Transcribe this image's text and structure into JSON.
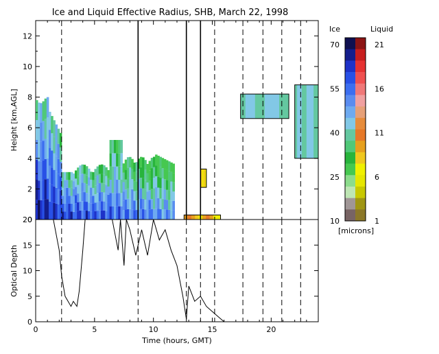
{
  "chart_data": [
    {
      "type": "heatmap",
      "title": "Ice and Liquid Effective Radius, SHB, March 22, 1998",
      "ylabel": "Height [km,AGL]",
      "xlim": [
        0,
        24
      ],
      "ylim": [
        0,
        13
      ],
      "yticks": [
        "0",
        "2",
        "4",
        "6",
        "8",
        "10",
        "12"
      ],
      "vertical_lines": [
        {
          "x": 2.2,
          "style": "dashed"
        },
        {
          "x": 8.7,
          "style": "solid"
        },
        {
          "x": 12.8,
          "style": "solid"
        },
        {
          "x": 14.0,
          "style": "solid"
        },
        {
          "x": 15.2,
          "style": "dashed"
        },
        {
          "x": 17.6,
          "style": "dashed"
        },
        {
          "x": 19.3,
          "style": "dashed"
        },
        {
          "x": 20.9,
          "style": "dashed"
        },
        {
          "x": 22.5,
          "style": "dashed"
        }
      ],
      "regions": [
        {
          "name": "ice-main",
          "phase": "ice",
          "x_range": [
            0,
            11.8
          ],
          "height_range": [
            0,
            7.8
          ],
          "effective_radius_range_microns": [
            25,
            70
          ]
        },
        {
          "name": "liquid-base",
          "phase": "liquid",
          "x_range": [
            12.6,
            15.7
          ],
          "height_range": [
            0,
            0.3
          ],
          "effective_radius_range_microns": [
            6,
            11
          ]
        },
        {
          "name": "liquid-patch",
          "phase": "liquid",
          "x_range": [
            14.0,
            14.5
          ],
          "height_range": [
            2.1,
            3.3
          ],
          "effective_radius_range_microns": [
            6,
            8
          ]
        },
        {
          "name": "ice-cirrus-1",
          "phase": "ice",
          "x_range": [
            17.4,
            21.5
          ],
          "height_range": [
            6.6,
            8.2
          ],
          "effective_radius_range_microns": [
            35,
            45
          ]
        },
        {
          "name": "ice-cirrus-2",
          "phase": "ice",
          "x_range": [
            22.0,
            24.0
          ],
          "height_range": [
            4.0,
            8.8
          ],
          "effective_radius_range_microns": [
            35,
            45
          ]
        }
      ]
    },
    {
      "type": "line",
      "ylabel": "Optical Depth",
      "xlabel": "Time (hours, GMT)",
      "xlim": [
        0,
        24
      ],
      "ylim": [
        0,
        20
      ],
      "xticks": [
        "0",
        "5",
        "10",
        "15",
        "20"
      ],
      "yticks": [
        "0",
        "5",
        "10",
        "15",
        "20"
      ],
      "x": [
        0,
        0.5,
        1.0,
        1.5,
        2.0,
        2.2,
        2.5,
        3.0,
        3.2,
        3.5,
        3.7,
        4.0,
        4.2,
        4.5,
        5.0,
        5.5,
        6.0,
        6.5,
        7.0,
        7.2,
        7.5,
        7.7,
        8.0,
        8.5,
        9.0,
        9.5,
        10.0,
        10.5,
        11.0,
        11.5,
        12.0,
        12.5,
        12.8,
        13.0,
        13.5,
        14.0,
        14.5,
        15.0,
        15.5,
        16.0
      ],
      "y": [
        20,
        20,
        20,
        20,
        14,
        9,
        5,
        3,
        4,
        3,
        6,
        14,
        20,
        20,
        20,
        20,
        20,
        20,
        14,
        20,
        11,
        20,
        18,
        13,
        18,
        13,
        20,
        16,
        18,
        14,
        11,
        5,
        0.5,
        7,
        4,
        5,
        3,
        2,
        1,
        0
      ]
    }
  ],
  "colorbar": {
    "ice_label": "Ice",
    "liquid_label": "Liquid",
    "units": "[microns]",
    "ice_ticks": [
      "70",
      "55",
      "40",
      "25",
      "10"
    ],
    "liquid_ticks": [
      "21",
      "16",
      "11",
      "6",
      "1"
    ],
    "ice_colors": [
      "#101050",
      "#141e8c",
      "#1e32c8",
      "#2850e6",
      "#3c6ef0",
      "#5a8cf0",
      "#6eaaf0",
      "#82c8e6",
      "#64c8a0",
      "#50c878",
      "#28b43c",
      "#46c850",
      "#8cdc8c",
      "#bee6b4",
      "#a09696",
      "#786464"
    ],
    "liquid_colors": [
      "#8c1414",
      "#c81e1e",
      "#e63232",
      "#f05050",
      "#f07878",
      "#f0a0a0",
      "#e6a078",
      "#e68c3c",
      "#e67828",
      "#e6a01e",
      "#f0c81e",
      "#f0f000",
      "#e6e600",
      "#c8c800",
      "#a09614",
      "#8c7828"
    ]
  }
}
